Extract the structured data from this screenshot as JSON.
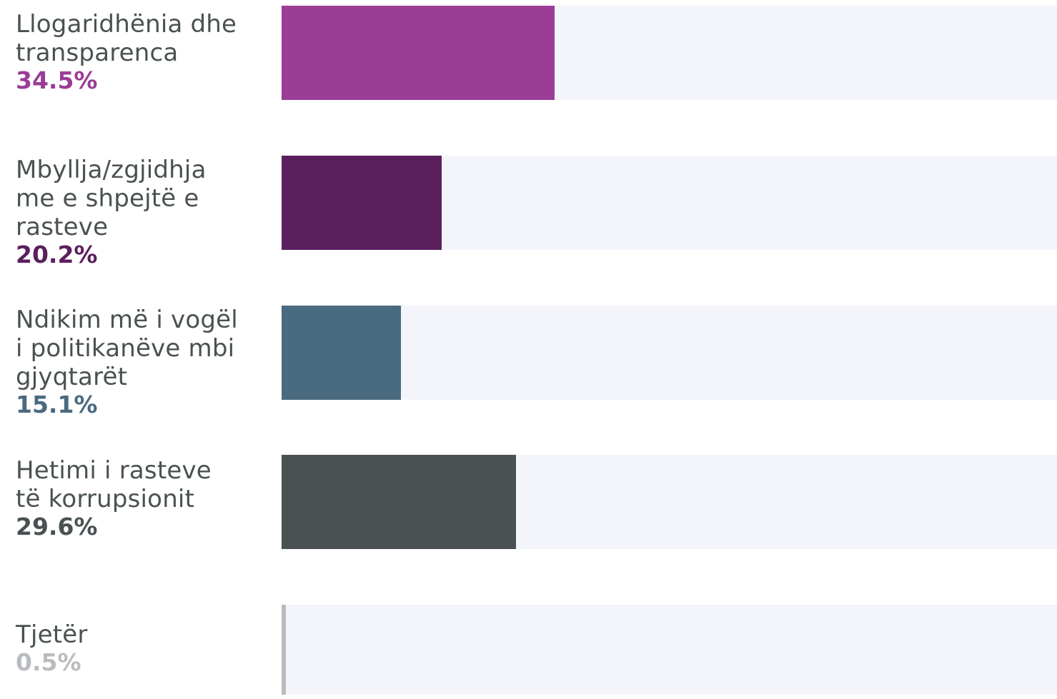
{
  "chart_data": {
    "type": "bar",
    "orientation": "horizontal",
    "xlim": [
      0,
      100
    ],
    "categories": [
      "Llogaridhënia dhe transparenca",
      "Mbyllja/zgjidhja me e shpejtë e rasteve",
      "Ndikim më i vogël i politikanëve mbi gjyqtarët",
      "Hetimi i rasteve të korrupsionit",
      "Tjetër"
    ],
    "values": [
      34.5,
      20.2,
      15.1,
      29.6,
      0.5
    ],
    "value_labels": [
      "34.5%",
      "20.2%",
      "15.1%",
      "29.6%",
      "0.5%"
    ],
    "colors": [
      "#9b3d97",
      "#5c1f5e",
      "#4a6a80",
      "#4a5153",
      "#b9bcbf"
    ],
    "track_color": "#f4f5fa",
    "grid": false
  }
}
